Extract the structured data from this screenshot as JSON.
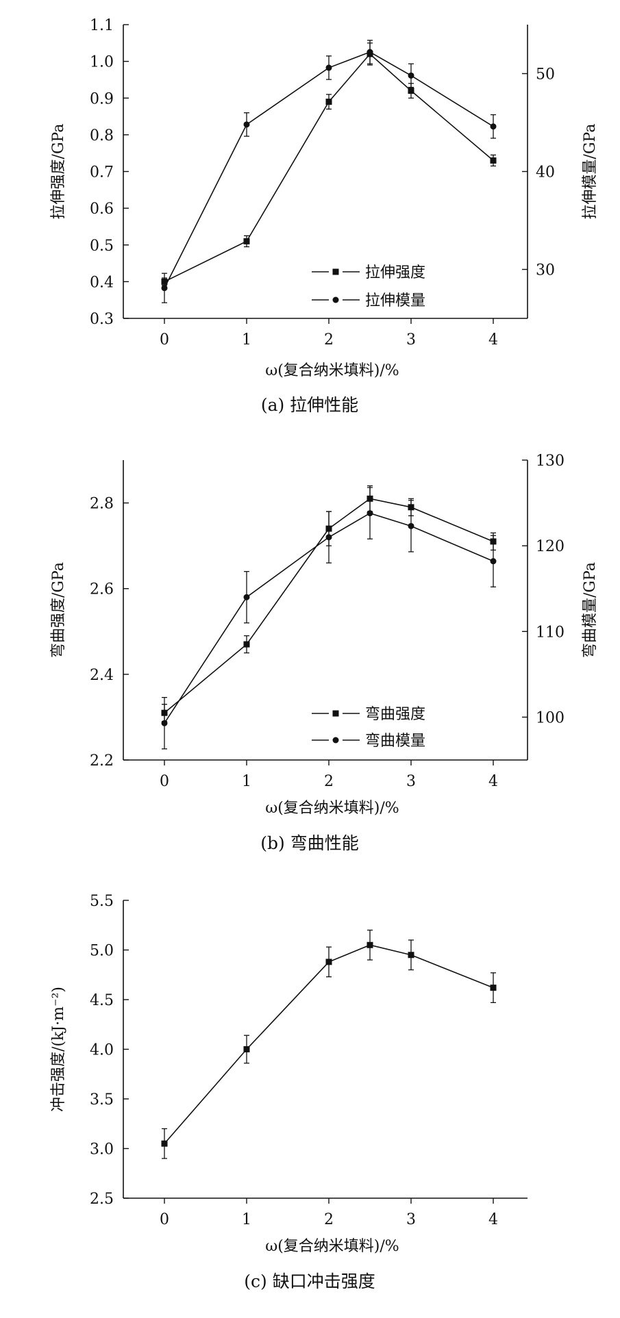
{
  "chart_data": [
    {
      "type": "line",
      "caption": "(a) 拉伸性能",
      "xlabel": "ω(复合纳米填料)/%",
      "ylabel": "拉伸强度/GPa",
      "y2label": "拉伸模量/GPa",
      "x": [
        0,
        1,
        2,
        2.5,
        3,
        4
      ],
      "x_ticks": [
        "0",
        "1",
        "2",
        "3",
        "4"
      ],
      "ylim": [
        0.3,
        1.1
      ],
      "y_ticks": [
        "0.3",
        "0.4",
        "0.5",
        "0.6",
        "0.7",
        "0.8",
        "0.9",
        "1.0",
        "1.1"
      ],
      "y2lim": [
        25,
        55
      ],
      "y2_ticks": [
        "30",
        "40",
        "50"
      ],
      "grid": false,
      "legend_position": "bottom-right",
      "series": [
        {
          "name": "拉伸强度",
          "marker": "square",
          "axis": "left",
          "values": [
            0.4,
            0.51,
            0.89,
            1.02,
            0.92,
            0.73
          ],
          "errors": [
            0.01,
            0.015,
            0.02,
            0.03,
            0.02,
            0.015
          ]
        },
        {
          "name": "拉伸模量",
          "marker": "circle",
          "axis": "right",
          "values": [
            28.1,
            44.8,
            50.6,
            52.2,
            49.8,
            44.6
          ],
          "errors": [
            1.5,
            1.2,
            1.2,
            1.2,
            1.2,
            1.2
          ]
        }
      ]
    },
    {
      "type": "line",
      "caption": "(b) 弯曲性能",
      "xlabel": "ω(复合纳米填料)/%",
      "ylabel": "弯曲强度/GPa",
      "y2label": "弯曲模量/GPa",
      "x": [
        0,
        1,
        2,
        2.5,
        3,
        4
      ],
      "x_ticks": [
        "0",
        "1",
        "2",
        "3",
        "4"
      ],
      "ylim": [
        2.2,
        2.9
      ],
      "y_ticks": [
        "2.2",
        "2.4",
        "2.6",
        "2.8"
      ],
      "y2lim": [
        95,
        130
      ],
      "y2_ticks": [
        "100",
        "110",
        "120",
        "130"
      ],
      "grid": false,
      "legend_position": "bottom-right",
      "series": [
        {
          "name": "弯曲强度",
          "marker": "square",
          "axis": "left",
          "values": [
            2.31,
            2.47,
            2.74,
            2.81,
            2.79,
            2.71
          ],
          "errors": [
            0.02,
            0.02,
            0.04,
            0.03,
            0.02,
            0.02
          ]
        },
        {
          "name": "弯曲模量",
          "marker": "circle",
          "axis": "right",
          "values": [
            99.3,
            114.0,
            121.0,
            123.8,
            122.3,
            118.2
          ],
          "errors": [
            3.0,
            3.0,
            3.0,
            3.0,
            3.0,
            3.0
          ]
        }
      ]
    },
    {
      "type": "line",
      "caption": "(c) 缺口冲击强度",
      "xlabel": "ω(复合纳米填料)/%",
      "ylabel": "冲击强度/(kJ·m⁻²)",
      "x": [
        0,
        1,
        2,
        2.5,
        3,
        4
      ],
      "x_ticks": [
        "0",
        "1",
        "2",
        "3",
        "4"
      ],
      "ylim": [
        2.5,
        5.5
      ],
      "y_ticks": [
        "2.5",
        "3.0",
        "3.5",
        "4.0",
        "4.5",
        "5.0",
        "5.5"
      ],
      "grid": false,
      "series": [
        {
          "marker": "square",
          "axis": "left",
          "values": [
            3.05,
            4.0,
            4.88,
            5.05,
            4.95,
            4.62
          ],
          "errors": [
            0.15,
            0.14,
            0.15,
            0.15,
            0.15,
            0.15
          ]
        }
      ]
    }
  ]
}
